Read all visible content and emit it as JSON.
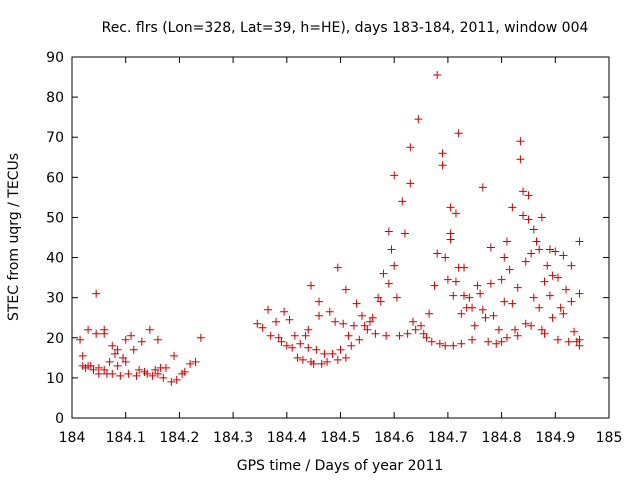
{
  "chart_data": {
    "type": "scatter",
    "title": "Rec. flrs (Lon=328, Lat=39, h=HE), days 183-184, 2011, window 004",
    "xlabel": "GPS time / Days of year 2011",
    "ylabel": "STEC from uqrg / TECUs",
    "xlim": [
      184,
      185
    ],
    "ylim": [
      0,
      90
    ],
    "x_ticks": [
      "184",
      "184.1",
      "184.2",
      "184.3",
      "184.4",
      "184.5",
      "184.6",
      "184.7",
      "184.8",
      "184.9",
      "185"
    ],
    "y_ticks": [
      "0",
      "10",
      "20",
      "30",
      "40",
      "50",
      "60",
      "70",
      "80",
      "90"
    ],
    "grid": false,
    "marker": "+",
    "color": "#cc0000",
    "series": [
      {
        "name": "STEC",
        "points": [
          [
            184.015,
            19.5
          ],
          [
            184.02,
            15.5
          ],
          [
            184.02,
            13
          ],
          [
            184.025,
            12.5
          ],
          [
            184.03,
            22
          ],
          [
            184.03,
            13
          ],
          [
            184.035,
            13
          ],
          [
            184.04,
            12
          ],
          [
            184.045,
            31
          ],
          [
            184.045,
            21
          ],
          [
            184.05,
            12.5
          ],
          [
            184.05,
            11
          ],
          [
            184.06,
            22
          ],
          [
            184.06,
            21
          ],
          [
            184.06,
            12
          ],
          [
            184.065,
            11
          ],
          [
            184.07,
            14
          ],
          [
            184.075,
            18
          ],
          [
            184.075,
            11
          ],
          [
            184.08,
            16
          ],
          [
            184.085,
            17
          ],
          [
            184.085,
            13
          ],
          [
            184.09,
            10.5
          ],
          [
            184.095,
            15
          ],
          [
            184.1,
            19.5
          ],
          [
            184.1,
            14
          ],
          [
            184.105,
            11
          ],
          [
            184.11,
            20.5
          ],
          [
            184.115,
            17
          ],
          [
            184.12,
            10.5
          ],
          [
            184.125,
            12
          ],
          [
            184.13,
            19
          ],
          [
            184.135,
            11.5
          ],
          [
            184.14,
            11
          ],
          [
            184.145,
            22
          ],
          [
            184.15,
            10.5
          ],
          [
            184.155,
            12
          ],
          [
            184.16,
            19.5
          ],
          [
            184.16,
            11
          ],
          [
            184.165,
            12.5
          ],
          [
            184.17,
            10
          ],
          [
            184.175,
            12.5
          ],
          [
            184.185,
            9
          ],
          [
            184.19,
            15.5
          ],
          [
            184.195,
            9.5
          ],
          [
            184.205,
            11
          ],
          [
            184.21,
            11.5
          ],
          [
            184.22,
            13.5
          ],
          [
            184.23,
            14
          ],
          [
            184.24,
            20
          ],
          [
            184.345,
            23.5
          ],
          [
            184.355,
            22.5
          ],
          [
            184.365,
            27
          ],
          [
            184.37,
            20.5
          ],
          [
            184.38,
            24
          ],
          [
            184.385,
            20
          ],
          [
            184.39,
            19
          ],
          [
            184.395,
            26.5
          ],
          [
            184.4,
            18
          ],
          [
            184.405,
            24.5
          ],
          [
            184.41,
            17.5
          ],
          [
            184.415,
            20.5
          ],
          [
            184.42,
            15
          ],
          [
            184.425,
            18.5
          ],
          [
            184.43,
            14.5
          ],
          [
            184.435,
            20.5
          ],
          [
            184.44,
            17.5
          ],
          [
            184.44,
            22
          ],
          [
            184.445,
            14
          ],
          [
            184.445,
            33
          ],
          [
            184.45,
            13.5
          ],
          [
            184.455,
            17
          ],
          [
            184.46,
            25.5
          ],
          [
            184.46,
            29
          ],
          [
            184.465,
            13.5
          ],
          [
            184.47,
            16
          ],
          [
            184.475,
            14
          ],
          [
            184.48,
            26.5
          ],
          [
            184.485,
            16
          ],
          [
            184.49,
            24
          ],
          [
            184.495,
            37.5
          ],
          [
            184.495,
            14.5
          ],
          [
            184.5,
            17
          ],
          [
            184.505,
            23.5
          ],
          [
            184.51,
            32
          ],
          [
            184.51,
            15
          ],
          [
            184.515,
            20.5
          ],
          [
            184.52,
            18
          ],
          [
            184.525,
            23
          ],
          [
            184.53,
            28.5
          ],
          [
            184.535,
            19.5
          ],
          [
            184.54,
            25.5
          ],
          [
            184.545,
            23
          ],
          [
            184.55,
            22
          ],
          [
            184.555,
            24
          ],
          [
            184.56,
            25
          ],
          [
            184.565,
            21
          ],
          [
            184.57,
            30
          ],
          [
            184.575,
            29
          ],
          [
            184.58,
            36
          ],
          [
            184.585,
            20.5
          ],
          [
            184.59,
            46.5
          ],
          [
            184.59,
            33.5
          ],
          [
            184.595,
            42
          ],
          [
            184.6,
            38
          ],
          [
            184.6,
            60.5
          ],
          [
            184.605,
            30
          ],
          [
            184.61,
            20.5
          ],
          [
            184.615,
            54
          ],
          [
            184.62,
            46
          ],
          [
            184.625,
            21
          ],
          [
            184.63,
            58.5
          ],
          [
            184.63,
            67.5
          ],
          [
            184.635,
            24
          ],
          [
            184.64,
            22
          ],
          [
            184.645,
            74.5
          ],
          [
            184.65,
            23
          ],
          [
            184.655,
            21
          ],
          [
            184.66,
            20
          ],
          [
            184.665,
            26
          ],
          [
            184.67,
            19
          ],
          [
            184.675,
            33
          ],
          [
            184.68,
            85.5
          ],
          [
            184.68,
            41
          ],
          [
            184.685,
            18.5
          ],
          [
            184.69,
            66
          ],
          [
            184.69,
            63
          ],
          [
            184.695,
            40
          ],
          [
            184.695,
            18
          ],
          [
            184.7,
            34.5
          ],
          [
            184.705,
            52.5
          ],
          [
            184.705,
            46
          ],
          [
            184.705,
            44.5
          ],
          [
            184.71,
            30.5
          ],
          [
            184.71,
            18
          ],
          [
            184.715,
            51
          ],
          [
            184.715,
            34
          ],
          [
            184.72,
            71
          ],
          [
            184.72,
            37.5
          ],
          [
            184.725,
            26
          ],
          [
            184.725,
            18.5
          ],
          [
            184.73,
            37.5
          ],
          [
            184.73,
            30.5
          ],
          [
            184.735,
            27.5
          ],
          [
            184.74,
            30
          ],
          [
            184.745,
            27.5
          ],
          [
            184.745,
            19.5
          ],
          [
            184.75,
            23
          ],
          [
            184.755,
            33
          ],
          [
            184.76,
            31
          ],
          [
            184.765,
            57.5
          ],
          [
            184.765,
            27
          ],
          [
            184.77,
            25
          ],
          [
            184.775,
            19
          ],
          [
            184.78,
            42.5
          ],
          [
            184.78,
            33.5
          ],
          [
            184.785,
            25.5
          ],
          [
            184.79,
            18.5
          ],
          [
            184.795,
            22
          ],
          [
            184.8,
            34.5
          ],
          [
            184.8,
            19
          ],
          [
            184.805,
            40
          ],
          [
            184.805,
            29
          ],
          [
            184.81,
            44
          ],
          [
            184.81,
            20
          ],
          [
            184.815,
            37
          ],
          [
            184.82,
            52.5
          ],
          [
            184.82,
            28.5
          ],
          [
            184.825,
            22
          ],
          [
            184.83,
            32.5
          ],
          [
            184.83,
            20.5
          ],
          [
            184.835,
            69
          ],
          [
            184.835,
            64.5
          ],
          [
            184.84,
            56.5
          ],
          [
            184.84,
            50.5
          ],
          [
            184.845,
            39
          ],
          [
            184.845,
            23.5
          ],
          [
            184.85,
            55.5
          ],
          [
            184.85,
            49.5
          ],
          [
            184.855,
            41
          ],
          [
            184.855,
            23
          ],
          [
            184.86,
            47
          ],
          [
            184.86,
            30
          ],
          [
            184.865,
            44
          ],
          [
            184.87,
            42
          ],
          [
            184.87,
            27.5
          ],
          [
            184.875,
            50
          ],
          [
            184.875,
            22
          ],
          [
            184.88,
            34
          ],
          [
            184.88,
            21
          ],
          [
            184.885,
            38
          ],
          [
            184.89,
            42
          ],
          [
            184.89,
            30.5
          ],
          [
            184.895,
            35.5
          ],
          [
            184.895,
            25
          ],
          [
            184.9,
            41.5
          ],
          [
            184.905,
            35
          ],
          [
            184.905,
            19.5
          ],
          [
            184.91,
            27.5
          ],
          [
            184.915,
            40.5
          ],
          [
            184.915,
            26
          ],
          [
            184.92,
            32
          ],
          [
            184.925,
            19
          ],
          [
            184.93,
            38
          ],
          [
            184.93,
            29
          ],
          [
            184.935,
            21.5
          ],
          [
            184.94,
            19
          ],
          [
            184.945,
            44
          ],
          [
            184.945,
            31
          ],
          [
            184.945,
            19.5
          ],
          [
            184.945,
            18
          ]
        ]
      }
    ]
  }
}
